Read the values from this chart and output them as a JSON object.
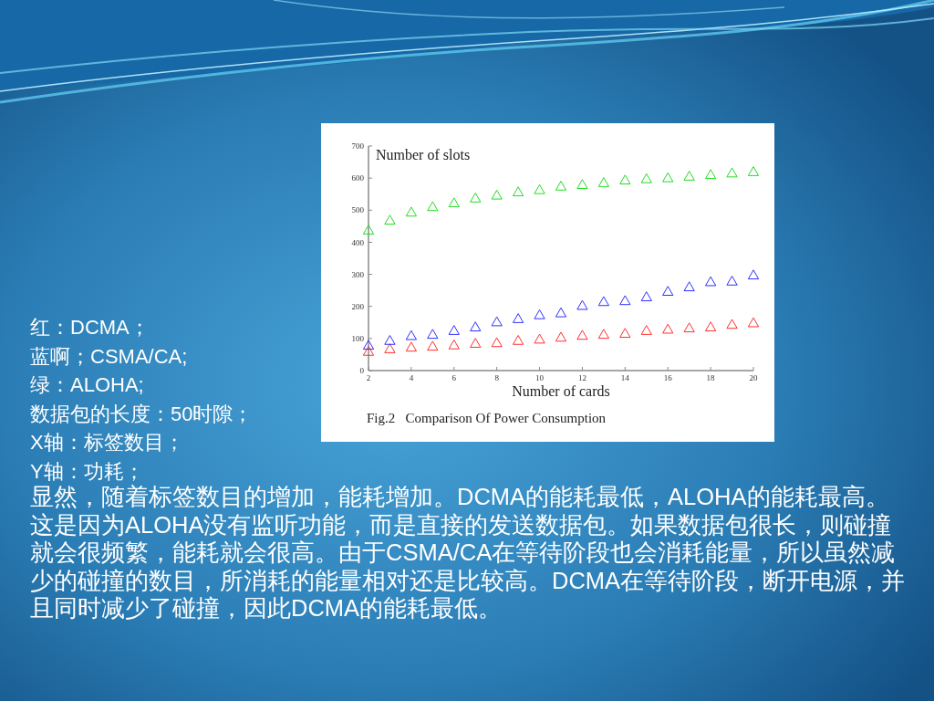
{
  "chart_data": {
    "type": "scatter",
    "ylabel": "Number of slots",
    "xlabel": "Number of cards",
    "annotations": [
      "Fig.2   Comparison Of Power Consumption",
      "红：DCMA；",
      "蓝啊；CSMA/CA;",
      "绿：ALOHA;",
      "数据包的长度：50时隙；",
      "X轴：标签数目；",
      "Y轴：功耗；",
      "显然，随着标签数目的增加，能耗增加。DCMA的能耗最低，ALOHA的能耗最高。这是因为ALOHA没有监听功能，而是直接的发送数据包。如果数据包很长，则碰撞就会很频繁，能耗就会很高。由于CSMA/CA在等待阶段也会消耗能量，所以虽然减少的碰撞的数目，所消耗的能量相对还是比较高。DCMA在等待阶段，断开电源，并且同时减少了碰撞，因此DCMA的能耗最低。"
    ],
    "x": [
      2,
      3,
      4,
      5,
      6,
      7,
      8,
      9,
      10,
      11,
      12,
      13,
      14,
      15,
      16,
      17,
      18,
      19,
      20
    ],
    "series": [
      {
        "color": "#ff3030",
        "values": [
          57,
          65,
          70,
          73,
          77,
          82,
          84,
          91,
          95,
          101,
          107,
          110,
          113,
          122,
          126,
          130,
          133,
          141,
          146
        ]
      },
      {
        "color": "#3030ff",
        "values": [
          76,
          91,
          106,
          110,
          122,
          133,
          149,
          159,
          171,
          177,
          200,
          212,
          215,
          227,
          244,
          258,
          274,
          276,
          295
        ]
      },
      {
        "color": "#22dd22",
        "values": [
          435,
          466,
          491,
          508,
          520,
          535,
          544,
          554,
          561,
          572,
          577,
          583,
          591,
          595,
          598,
          603,
          608,
          613,
          617
        ]
      }
    ],
    "marker": "triangle",
    "xlim": [
      2,
      20
    ],
    "ylim": [
      0,
      700
    ],
    "xticks": [
      2,
      4,
      6,
      8,
      10,
      12,
      14,
      16,
      18,
      20
    ],
    "yticks": [
      0,
      100,
      200,
      300,
      400,
      500,
      600,
      700
    ]
  }
}
